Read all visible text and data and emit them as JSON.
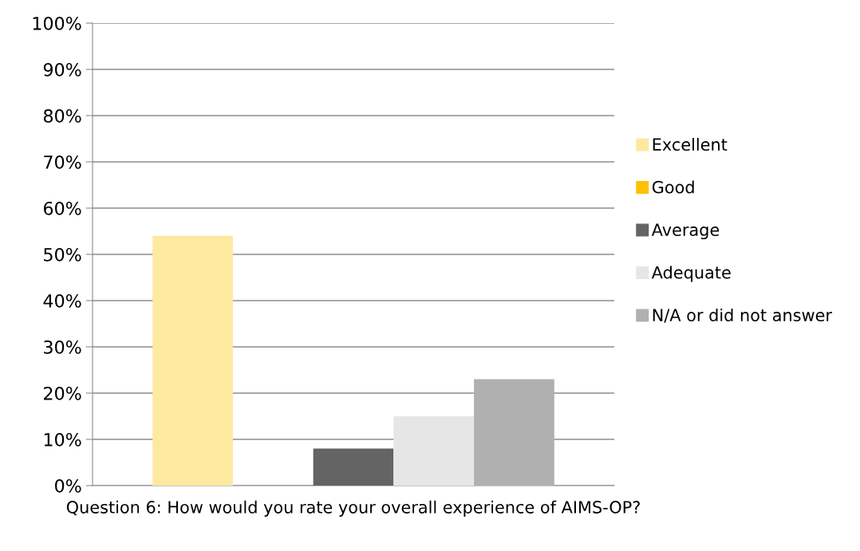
{
  "chart_data": {
    "type": "bar",
    "xlabel": "Question 6: How would you rate your overall experience of AIMS-OP?",
    "categories": [
      null
    ],
    "series": [
      {
        "name": "Excellent",
        "color": "#fde9a0",
        "values": [
          54
        ]
      },
      {
        "name": "Good",
        "color": "#ffc000",
        "values": [
          0
        ]
      },
      {
        "name": "Average",
        "color": "#646464",
        "values": [
          8
        ]
      },
      {
        "name": "Adequate",
        "color": "#e6e6e6",
        "values": [
          15
        ]
      },
      {
        "name": "N/A or did not answer",
        "color": "#b0b0b0",
        "values": [
          23
        ]
      }
    ],
    "ylim": [
      0,
      100
    ],
    "yticks": [
      {
        "value": 0,
        "label": "0%"
      },
      {
        "value": 10,
        "label": "10%"
      },
      {
        "value": 20,
        "label": "20%"
      },
      {
        "value": 30,
        "label": "30%"
      },
      {
        "value": 40,
        "label": "40%"
      },
      {
        "value": 50,
        "label": "50%"
      },
      {
        "value": 60,
        "label": "60%"
      },
      {
        "value": 70,
        "label": "70%"
      },
      {
        "value": 80,
        "label": "80%"
      },
      {
        "value": 90,
        "label": "90%"
      },
      {
        "value": 100,
        "label": "100%"
      }
    ],
    "grid": "y",
    "legend": "right"
  }
}
